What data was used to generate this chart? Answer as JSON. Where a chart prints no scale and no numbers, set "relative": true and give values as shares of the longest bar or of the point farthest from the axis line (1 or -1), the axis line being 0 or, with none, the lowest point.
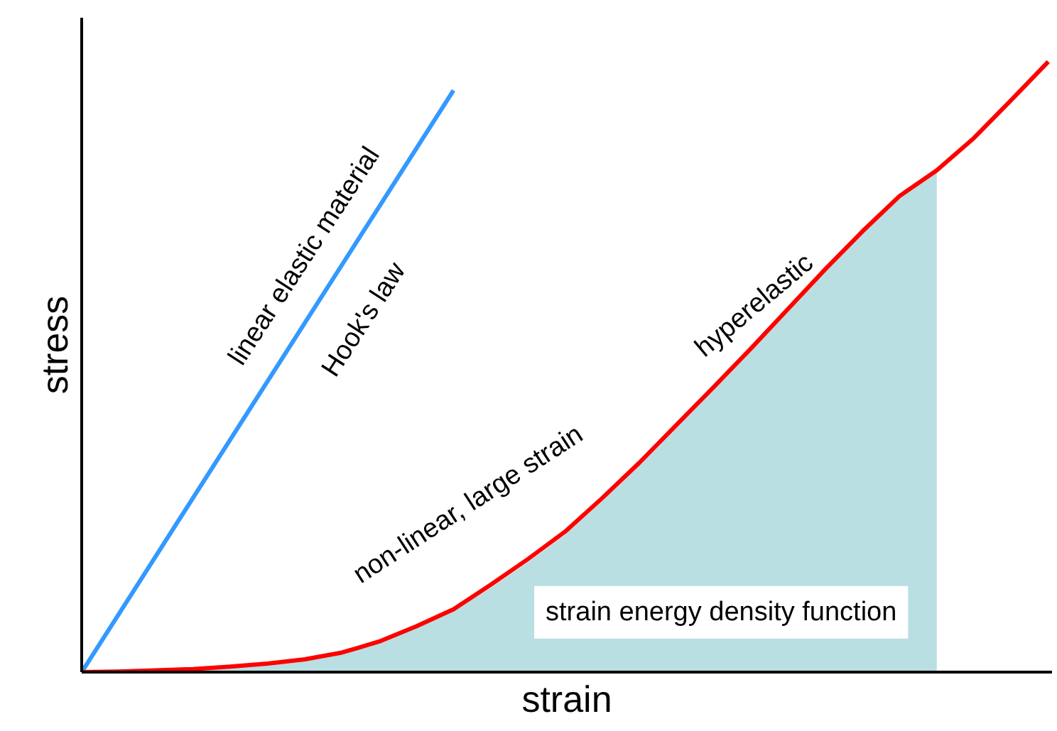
{
  "chart_data": {
    "type": "line",
    "relative": true,
    "xlabel": "strain",
    "ylabel": "stress",
    "tick_labels": false,
    "categories": [
      null,
      null,
      null,
      null,
      null,
      null,
      null,
      null,
      null,
      null,
      null,
      null,
      null,
      null,
      null,
      null,
      null,
      null,
      null,
      null,
      null,
      null,
      null,
      null,
      null,
      null,
      null
    ],
    "series": [
      {
        "type": "area",
        "color": "#b9dfe2",
        "values": [
          0,
          0.001,
          0.003,
          0.005,
          0.009,
          0.014,
          0.021,
          0.032,
          0.05,
          0.072,
          0.1,
          0.138,
          0.18,
          0.225,
          0.28,
          0.338,
          0.4,
          0.462,
          0.525,
          0.59,
          0.655,
          0.718,
          0.778,
          0.82,
          null,
          null,
          null
        ]
      },
      {
        "color": "#3399ff",
        "values": [
          0,
          0.0953,
          0.1906,
          0.2859,
          0.3812,
          0.4765,
          0.5718,
          0.6671,
          0.7624,
          0.8577,
          0.953,
          null,
          null,
          null,
          null,
          null,
          null,
          null,
          null,
          null,
          null,
          null,
          null,
          null,
          null,
          null,
          null
        ]
      },
      {
        "color": "#ff0000",
        "values": [
          0,
          0.001,
          0.003,
          0.005,
          0.009,
          0.014,
          0.021,
          0.032,
          0.05,
          0.075,
          0.103,
          0.143,
          0.185,
          0.23,
          0.285,
          0.343,
          0.405,
          0.467,
          0.53,
          0.595,
          0.66,
          0.722,
          0.78,
          0.822,
          0.875,
          0.937,
          1
        ]
      }
    ],
    "annotations": [
      "linear elastic material",
      "Hook's law",
      "non-linear, large strain",
      "hyperelastic",
      "strain energy density function"
    ]
  }
}
